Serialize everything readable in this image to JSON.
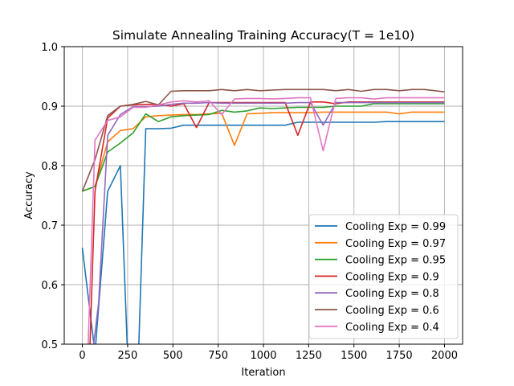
{
  "chart_data": {
    "type": "line",
    "title": "Simulate Annealing Training Accuracy(T = 1e10)",
    "xlabel": "Iteration",
    "ylabel": "Accuracy",
    "xlim": [
      -100,
      2100
    ],
    "ylim": [
      0.5,
      1.0
    ],
    "xticks": [
      0,
      250,
      500,
      750,
      1000,
      1250,
      1500,
      1750,
      2000
    ],
    "yticks": [
      0.5,
      0.6,
      0.7,
      0.8,
      0.9,
      1.0
    ],
    "grid": true,
    "legend_position": "lower-right",
    "series": [
      {
        "name": "Cooling Exp = 0.99",
        "color": "#1f77b4",
        "x": [
          0,
          70,
          140,
          210,
          250,
          310,
          350,
          420,
          490,
          560,
          630,
          700,
          770,
          840,
          910,
          980,
          1050,
          1120,
          1190,
          1260,
          1330,
          1400,
          1470,
          1540,
          1610,
          1680,
          1750,
          1820,
          1890,
          2000
        ],
        "y": [
          0.662,
          0.485,
          0.757,
          0.8,
          0.48,
          0.48,
          0.862,
          0.862,
          0.863,
          0.868,
          0.868,
          0.868,
          0.868,
          0.868,
          0.868,
          0.868,
          0.868,
          0.868,
          0.873,
          0.873,
          0.873,
          0.873,
          0.873,
          0.873,
          0.873,
          0.874,
          0.874,
          0.874,
          0.874,
          0.874
        ]
      },
      {
        "name": "Cooling Exp = 0.97",
        "color": "#ff7f0e",
        "x": [
          0,
          70,
          140,
          210,
          280,
          350,
          420,
          490,
          560,
          630,
          700,
          770,
          840,
          910,
          980,
          1050,
          1120,
          1190,
          1260,
          1330,
          1400,
          1470,
          1540,
          1610,
          1680,
          1750,
          1820,
          1890,
          2000
        ],
        "y": [
          0.757,
          0.765,
          0.84,
          0.859,
          0.862,
          0.882,
          0.884,
          0.885,
          0.886,
          0.886,
          0.887,
          0.888,
          0.834,
          0.887,
          0.888,
          0.889,
          0.889,
          0.889,
          0.889,
          0.89,
          0.89,
          0.89,
          0.89,
          0.89,
          0.89,
          0.887,
          0.89,
          0.89,
          0.89
        ]
      },
      {
        "name": "Cooling Exp = 0.95",
        "color": "#2ca02c",
        "x": [
          0,
          70,
          140,
          210,
          280,
          350,
          420,
          490,
          560,
          630,
          700,
          770,
          840,
          910,
          980,
          1050,
          1120,
          1190,
          1260,
          1330,
          1400,
          1470,
          1540,
          1610,
          1680,
          1750,
          1820,
          1890,
          2000
        ],
        "y": [
          0.757,
          0.765,
          0.823,
          0.838,
          0.855,
          0.887,
          0.874,
          0.882,
          0.884,
          0.885,
          0.886,
          0.893,
          0.89,
          0.892,
          0.897,
          0.896,
          0.897,
          0.898,
          0.898,
          0.898,
          0.9,
          0.9,
          0.9,
          0.904,
          0.904,
          0.904,
          0.904,
          0.904,
          0.904
        ]
      },
      {
        "name": "Cooling Exp = 0.9",
        "color": "#d62728",
        "x": [
          40,
          70,
          140,
          210,
          280,
          350,
          420,
          490,
          560,
          630,
          700,
          770,
          840,
          910,
          980,
          1050,
          1120,
          1190,
          1260,
          1330,
          1400,
          1470,
          1540,
          1610,
          1680,
          1750,
          1820,
          1890,
          2000
        ],
        "y": [
          0.48,
          0.757,
          0.88,
          0.9,
          0.902,
          0.903,
          0.903,
          0.9,
          0.904,
          0.864,
          0.906,
          0.906,
          0.906,
          0.906,
          0.906,
          0.906,
          0.906,
          0.851,
          0.907,
          0.907,
          0.904,
          0.907,
          0.907,
          0.907,
          0.907,
          0.907,
          0.907,
          0.907,
          0.907
        ]
      },
      {
        "name": "Cooling Exp = 0.8",
        "color": "#9467bd",
        "x": [
          55,
          90,
          140,
          210,
          280,
          350,
          420,
          490,
          560,
          630,
          700,
          770,
          840,
          910,
          980,
          1050,
          1120,
          1190,
          1260,
          1330,
          1400,
          1470,
          1540,
          1610,
          1680,
          1750,
          1820,
          1890,
          2000
        ],
        "y": [
          0.48,
          0.57,
          0.851,
          0.886,
          0.899,
          0.899,
          0.9,
          0.903,
          0.905,
          0.905,
          0.906,
          0.905,
          0.905,
          0.905,
          0.905,
          0.905,
          0.905,
          0.906,
          0.906,
          0.868,
          0.906,
          0.906,
          0.906,
          0.906,
          0.906,
          0.906,
          0.906,
          0.906,
          0.906
        ]
      },
      {
        "name": "Cooling Exp = 0.6",
        "color": "#8c564b",
        "x": [
          0,
          70,
          140,
          210,
          280,
          350,
          420,
          490,
          560,
          630,
          700,
          770,
          840,
          910,
          980,
          1050,
          1120,
          1190,
          1260,
          1330,
          1400,
          1470,
          1540,
          1610,
          1680,
          1750,
          1820,
          1890,
          2000
        ],
        "y": [
          0.757,
          0.81,
          0.884,
          0.9,
          0.903,
          0.908,
          0.902,
          0.925,
          0.926,
          0.926,
          0.926,
          0.928,
          0.926,
          0.928,
          0.926,
          0.927,
          0.928,
          0.928,
          0.928,
          0.928,
          0.926,
          0.928,
          0.925,
          0.928,
          0.928,
          0.926,
          0.928,
          0.928,
          0.924
        ]
      },
      {
        "name": "Cooling Exp = 0.4",
        "color": "#e377c2",
        "x": [
          30,
          70,
          140,
          210,
          280,
          350,
          420,
          490,
          560,
          630,
          700,
          770,
          840,
          910,
          980,
          1050,
          1120,
          1190,
          1260,
          1330,
          1400,
          1470,
          1540,
          1610,
          1680,
          1750,
          1820,
          1890,
          2000
        ],
        "y": [
          0.48,
          0.843,
          0.876,
          0.882,
          0.898,
          0.898,
          0.902,
          0.907,
          0.909,
          0.907,
          0.909,
          0.886,
          0.912,
          0.913,
          0.913,
          0.912,
          0.913,
          0.914,
          0.914,
          0.825,
          0.913,
          0.914,
          0.914,
          0.912,
          0.914,
          0.914,
          0.914,
          0.914,
          0.914
        ]
      }
    ]
  }
}
